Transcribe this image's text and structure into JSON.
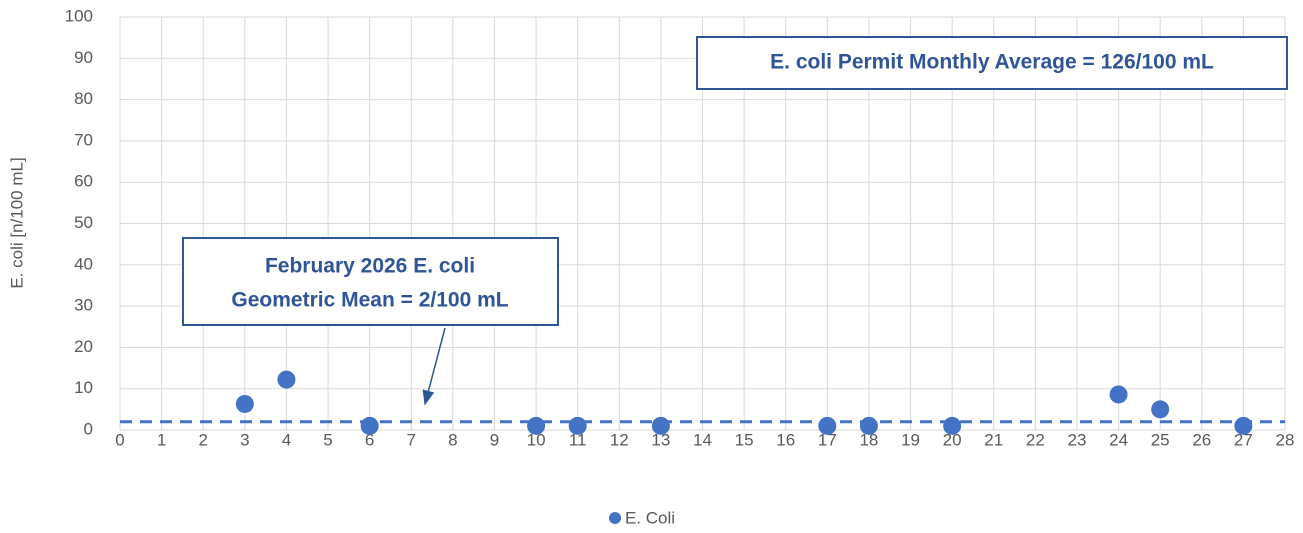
{
  "chart_data": {
    "type": "scatter",
    "y_label": "E. coli [n/100 mL]",
    "series": [
      {
        "name": "E. Coli",
        "color": "#4472c4",
        "x": [
          3,
          4,
          6,
          10,
          11,
          13,
          17,
          18,
          20,
          24,
          25,
          27
        ],
        "values": [
          6.3,
          12.2,
          1,
          1,
          1,
          1,
          1,
          1,
          1,
          8.6,
          5,
          1
        ]
      }
    ],
    "mean_line": {
      "value": 2,
      "color": "#4472c4"
    },
    "annotations": [
      {
        "lines": [
          "E. coli Permit Monthly Average = 126/100 mL"
        ]
      },
      {
        "lines": [
          "February 2026 E. coli",
          "Geometric Mean = 2/100 mL"
        ]
      }
    ],
    "xlim": [
      0,
      28
    ],
    "xticks": [
      0,
      1,
      2,
      3,
      4,
      5,
      6,
      7,
      8,
      9,
      10,
      11,
      12,
      13,
      14,
      15,
      16,
      17,
      18,
      19,
      20,
      21,
      22,
      23,
      24,
      25,
      26,
      27,
      28
    ],
    "ylim": [
      0,
      100
    ],
    "yticks": [
      0,
      10,
      20,
      30,
      40,
      50,
      60,
      70,
      80,
      90,
      100
    ],
    "grid": true,
    "legend": "bottom"
  }
}
